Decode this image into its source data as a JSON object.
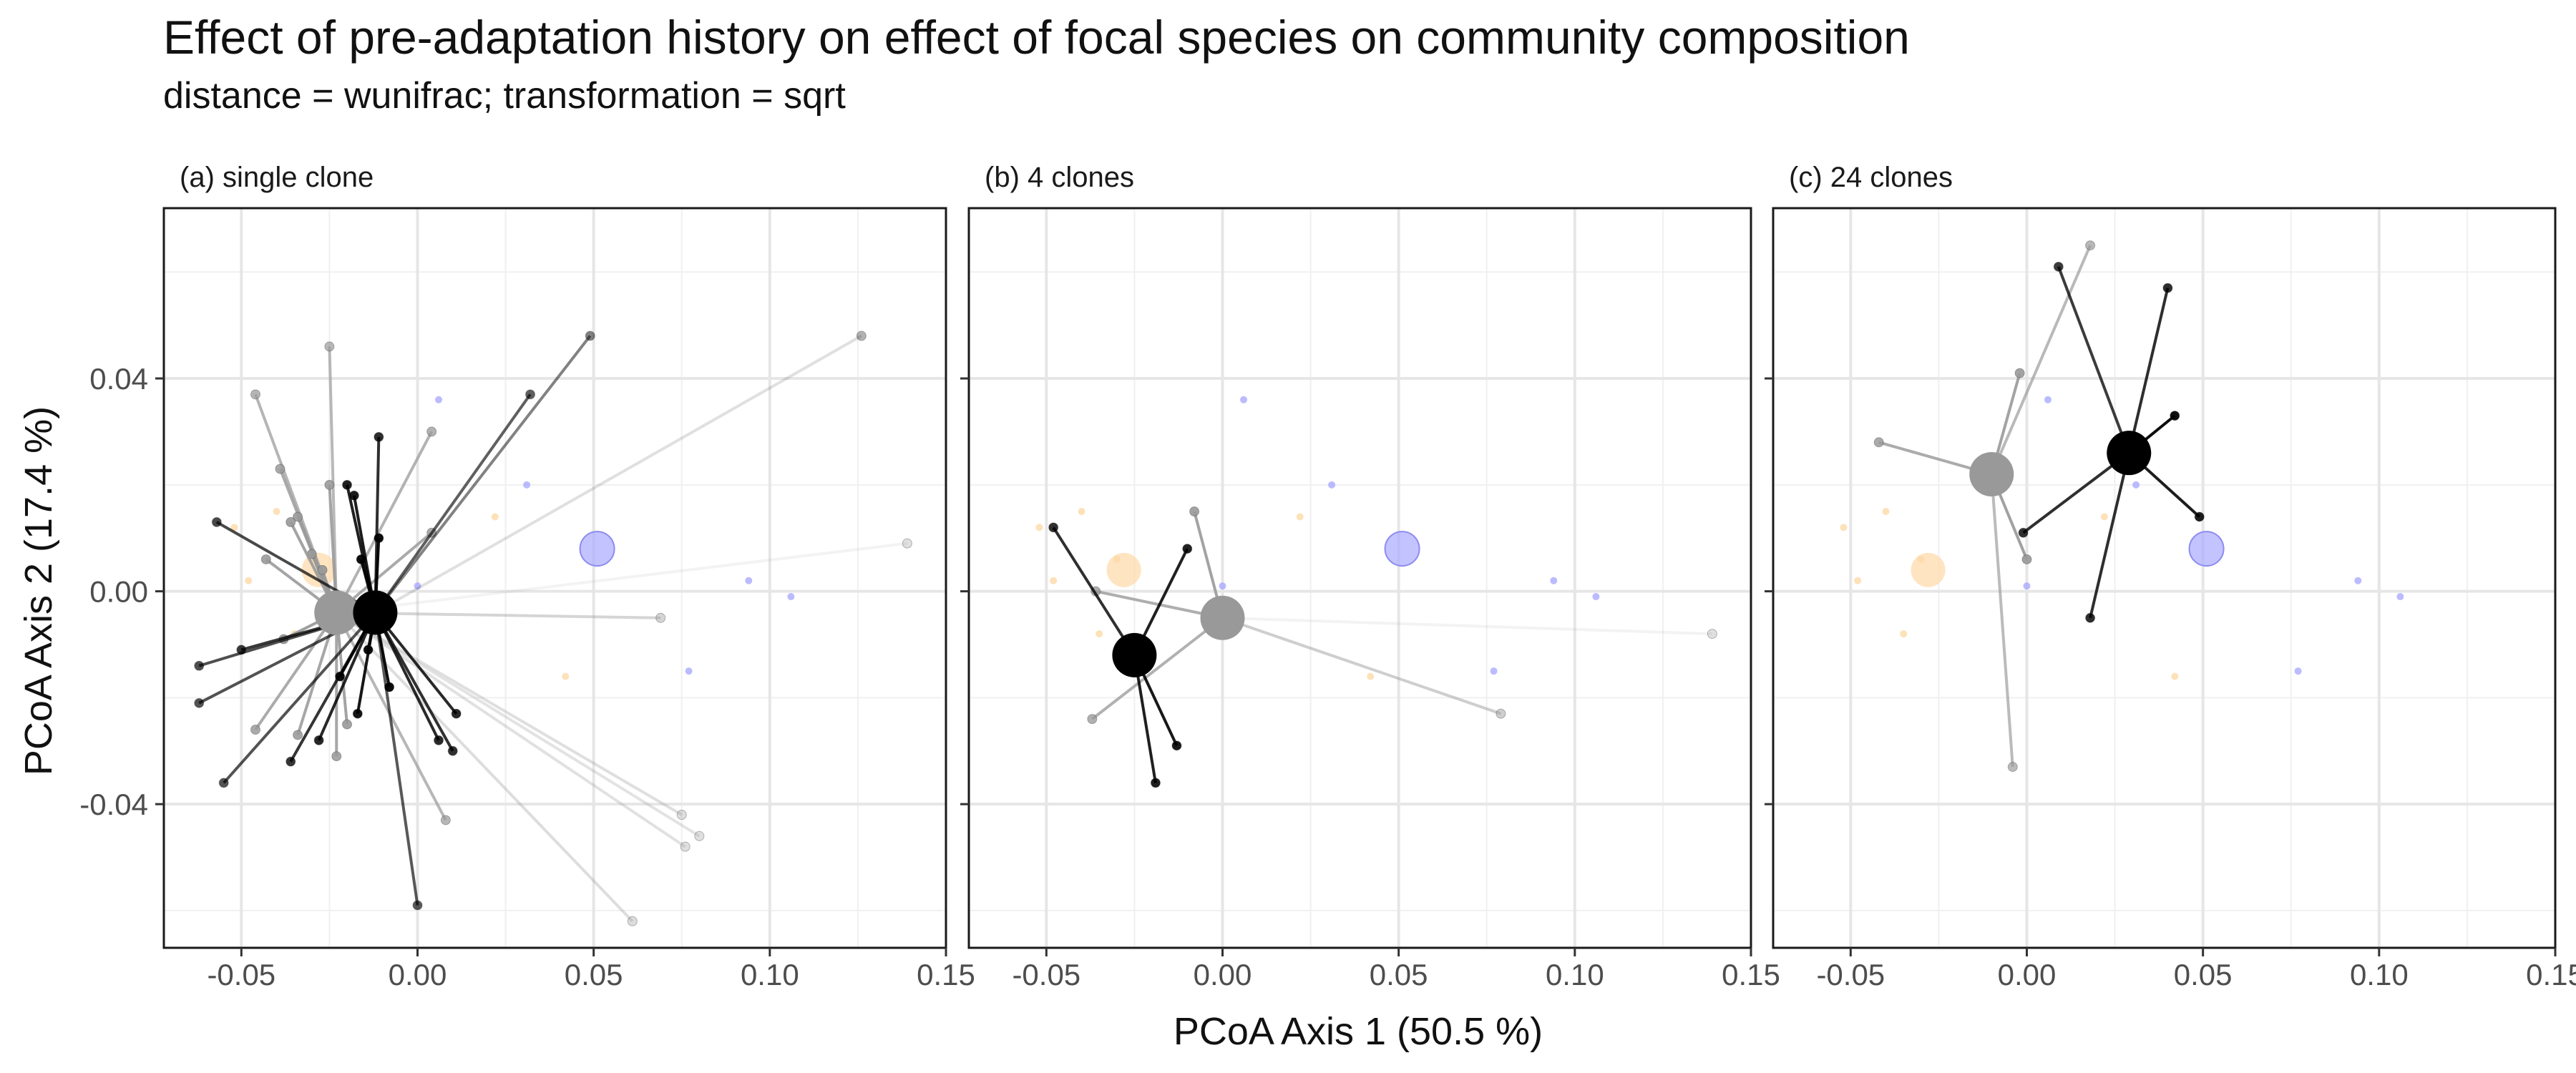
{
  "chart_data": {
    "type": "scatter",
    "title": "Effect of pre-adaptation history on effect of focal species on community composition",
    "subtitle": "distance = wunifrac; transformation = sqrt",
    "xlabel": "PCoA Axis 1 (50.5 %)",
    "ylabel": "PCoA Axis 2 (17.4 %)",
    "xlim": [
      -0.072,
      0.15
    ],
    "ylim": [
      -0.067,
      0.072
    ],
    "x_ticks": [
      -0.05,
      0.0,
      0.05,
      0.1,
      0.15
    ],
    "x_tick_labels": [
      "-0.05",
      "0.00",
      "0.05",
      "0.10",
      "0.15"
    ],
    "y_ticks": [
      -0.04,
      0.0,
      0.04
    ],
    "y_tick_labels": [
      "-0.04",
      "0.00",
      "0.04"
    ],
    "grid": true,
    "colors": {
      "treatment_a": "#000000",
      "treatment_b": "#999999",
      "background_orange": "#fdd9a6",
      "background_blue": "#aaaaff"
    },
    "background_points": {
      "orange": [
        [
          -0.052,
          0.012
        ],
        [
          -0.048,
          0.002
        ],
        [
          -0.04,
          0.015
        ],
        [
          -0.035,
          -0.008
        ],
        [
          -0.03,
          0.006
        ],
        [
          0.022,
          0.014
        ],
        [
          0.042,
          -0.016
        ]
      ],
      "blue": [
        [
          0.006,
          0.036
        ],
        [
          0.031,
          0.02
        ],
        [
          0.0,
          0.001
        ],
        [
          0.094,
          0.002
        ],
        [
          0.106,
          -0.001
        ],
        [
          0.077,
          -0.015
        ]
      ],
      "orange_centroid": [
        -0.028,
        0.004
      ],
      "blue_centroid": [
        0.051,
        0.008
      ]
    },
    "panels": [
      {
        "label": "(a) single clone",
        "groups": [
          {
            "color": "#999999",
            "centroid": [
              -0.023,
              -0.004
            ],
            "points": [
              [
                -0.046,
                0.037
              ],
              [
                -0.039,
                0.023
              ],
              [
                -0.034,
                0.014
              ],
              [
                -0.025,
                0.046
              ],
              [
                -0.025,
                0.02
              ],
              [
                -0.03,
                0.007
              ],
              [
                -0.038,
                -0.009
              ],
              [
                -0.046,
                -0.026
              ],
              [
                -0.034,
                -0.027
              ],
              [
                -0.023,
                -0.031
              ],
              [
                -0.02,
                -0.025
              ],
              [
                -0.027,
                0.004
              ],
              [
                0.004,
                0.011
              ],
              [
                0.004,
                0.03
              ],
              [
                0.069,
                -0.005
              ],
              [
                0.076,
                -0.048
              ],
              [
                0.08,
                -0.046
              ],
              [
                0.139,
                0.009
              ],
              [
                0.008,
                -0.043
              ],
              [
                0.061,
                -0.062
              ],
              [
                0.075,
                -0.042
              ],
              [
                -0.036,
                0.013
              ],
              [
                -0.043,
                0.006
              ]
            ]
          },
          {
            "color": "#000000",
            "centroid": [
              -0.012,
              -0.004
            ],
            "points": [
              [
                -0.057,
                0.013
              ],
              [
                -0.062,
                -0.014
              ],
              [
                -0.062,
                -0.021
              ],
              [
                -0.055,
                -0.036
              ],
              [
                -0.05,
                -0.011
              ],
              [
                -0.036,
                -0.032
              ],
              [
                -0.028,
                -0.028
              ],
              [
                -0.022,
                -0.016
              ],
              [
                -0.017,
                -0.023
              ],
              [
                -0.016,
                0.006
              ],
              [
                -0.014,
                -0.011
              ],
              [
                -0.011,
                0.029
              ],
              [
                -0.008,
                -0.018
              ],
              [
                0.0,
                -0.059
              ],
              [
                0.006,
                -0.028
              ],
              [
                0.01,
                -0.03
              ],
              [
                0.011,
                -0.023
              ],
              [
                0.032,
                0.037
              ],
              [
                0.049,
                0.048
              ],
              [
                0.126,
                0.048
              ],
              [
                -0.02,
                0.02
              ],
              [
                -0.018,
                0.018
              ],
              [
                -0.011,
                0.01
              ]
            ]
          }
        ]
      },
      {
        "label": "(b) 4 clones",
        "groups": [
          {
            "color": "#999999",
            "centroid": [
              0.0,
              -0.005
            ],
            "points": [
              [
                -0.037,
                -0.024
              ],
              [
                -0.036,
                0.0
              ],
              [
                -0.008,
                0.015
              ],
              [
                0.079,
                -0.023
              ],
              [
                0.139,
                -0.008
              ]
            ]
          },
          {
            "color": "#000000",
            "centroid": [
              -0.025,
              -0.012
            ],
            "points": [
              [
                -0.048,
                0.012
              ],
              [
                -0.01,
                0.008
              ],
              [
                -0.013,
                -0.029
              ],
              [
                -0.019,
                -0.036
              ]
            ]
          }
        ]
      },
      {
        "label": "(c) 24 clones",
        "groups": [
          {
            "color": "#999999",
            "centroid": [
              -0.01,
              0.022
            ],
            "points": [
              [
                -0.042,
                0.028
              ],
              [
                -0.002,
                0.041
              ],
              [
                0.0,
                0.006
              ],
              [
                -0.004,
                -0.033
              ],
              [
                0.018,
                0.065
              ]
            ]
          },
          {
            "color": "#000000",
            "centroid": [
              0.029,
              0.026
            ],
            "points": [
              [
                0.009,
                0.061
              ],
              [
                0.04,
                0.057
              ],
              [
                0.042,
                0.033
              ],
              [
                0.049,
                0.014
              ],
              [
                -0.001,
                0.011
              ],
              [
                0.018,
                -0.005
              ]
            ]
          }
        ]
      }
    ]
  }
}
